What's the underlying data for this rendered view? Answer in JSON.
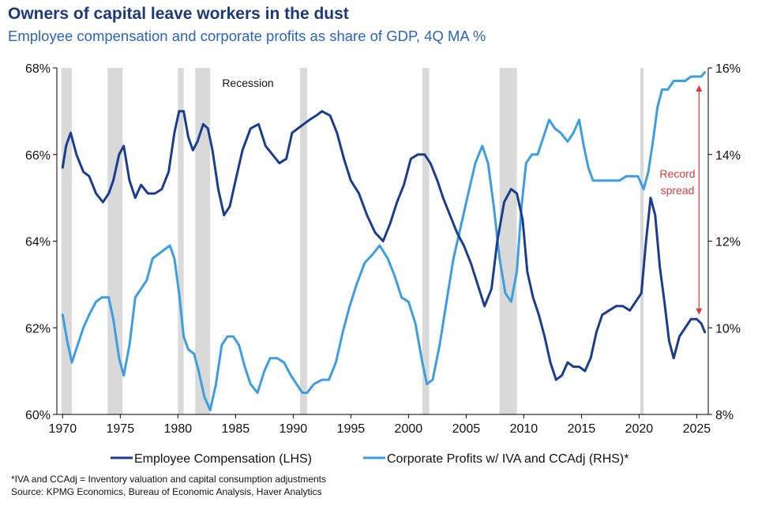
{
  "title": "Owners of capital leave workers in the dust",
  "subtitle": "Employee compensation and corporate profits as share of GDP, 4Q MA %",
  "footnote": "*IVA and CCAdj = Inventory valuation and capital consumption adjustments",
  "source": "Source: KPMG Economics, Bureau of Economic Analysis, Haver Analytics",
  "colors": {
    "employee": "#1a3d8f",
    "profits": "#3c9ee0",
    "recession": "#d9d9d9",
    "annotation": "#d93a3a"
  },
  "chart_data": {
    "type": "line",
    "title": "Owners of capital leave workers in the dust",
    "xlim": [
      1969.5,
      2026.0
    ],
    "ylim_left": [
      60,
      68
    ],
    "ylim_right": [
      8,
      16
    ],
    "x_ticks": [
      1970,
      1975,
      1980,
      1985,
      1990,
      1995,
      2000,
      2005,
      2010,
      2015,
      2020,
      2025
    ],
    "y_left_ticks": [
      "60%",
      "62%",
      "64%",
      "66%",
      "68%"
    ],
    "y_right_ticks": [
      "8%",
      "10%",
      "12%",
      "14%",
      "16%"
    ],
    "recession_label": "Recession",
    "recessions": [
      [
        1969.9,
        1970.8
      ],
      [
        1973.9,
        1975.2
      ],
      [
        1980.0,
        1980.5
      ],
      [
        1981.5,
        1982.8
      ],
      [
        1990.6,
        1991.2
      ],
      [
        2001.2,
        2001.8
      ],
      [
        2007.9,
        2009.4
      ],
      [
        2020.1,
        2020.4
      ]
    ],
    "annotation": {
      "lines": [
        "Record",
        "spread"
      ],
      "x": 2025.2,
      "y_top": 15.6,
      "y_bottom": 10.3
    },
    "series": [
      {
        "name": "Employee Compensation (LHS)",
        "axis": "left",
        "x": [
          1970.0,
          1970.3,
          1970.7,
          1971.2,
          1971.8,
          1972.3,
          1972.9,
          1973.5,
          1974.0,
          1974.4,
          1974.9,
          1975.3,
          1975.8,
          1976.3,
          1976.8,
          1977.4,
          1978.0,
          1978.6,
          1979.2,
          1979.7,
          1980.1,
          1980.5,
          1980.9,
          1981.3,
          1981.7,
          1982.2,
          1982.6,
          1983.0,
          1983.5,
          1984.0,
          1984.5,
          1985.0,
          1985.6,
          1986.3,
          1987.0,
          1987.6,
          1988.2,
          1988.8,
          1989.4,
          1989.9,
          1990.4,
          1990.9,
          1991.4,
          1992.0,
          1992.5,
          1993.2,
          1993.8,
          1994.4,
          1995.0,
          1995.7,
          1996.4,
          1997.1,
          1997.8,
          1998.4,
          1999.0,
          1999.6,
          2000.2,
          2000.8,
          2001.4,
          2001.9,
          2002.5,
          2003.0,
          2003.6,
          2004.2,
          2004.8,
          2005.4,
          2006.0,
          2006.6,
          2007.2,
          2007.7,
          2008.3,
          2008.9,
          2009.4,
          2009.9,
          2010.3,
          2010.8,
          2011.3,
          2011.8,
          2012.3,
          2012.8,
          2013.3,
          2013.8,
          2014.3,
          2014.8,
          2015.3,
          2015.8,
          2016.3,
          2016.8,
          2017.4,
          2018.0,
          2018.6,
          2019.2,
          2019.7,
          2020.2,
          2020.6,
          2021.0,
          2021.4,
          2021.8,
          2022.2,
          2022.6,
          2023.0,
          2023.5,
          2024.0,
          2024.5,
          2025.0,
          2025.4,
          2025.7
        ],
        "values": [
          65.7,
          66.2,
          66.5,
          66.0,
          65.6,
          65.5,
          65.1,
          64.9,
          65.1,
          65.4,
          66.0,
          66.2,
          65.4,
          65.0,
          65.3,
          65.1,
          65.1,
          65.2,
          65.6,
          66.5,
          67.0,
          67.0,
          66.4,
          66.1,
          66.3,
          66.7,
          66.6,
          66.1,
          65.2,
          64.6,
          64.8,
          65.4,
          66.1,
          66.6,
          66.7,
          66.2,
          66.0,
          65.8,
          65.9,
          66.5,
          66.6,
          66.7,
          66.8,
          66.9,
          67.0,
          66.9,
          66.5,
          65.9,
          65.4,
          65.1,
          64.6,
          64.2,
          64.0,
          64.4,
          64.9,
          65.3,
          65.9,
          66.0,
          66.0,
          65.8,
          65.4,
          65.0,
          64.6,
          64.2,
          63.9,
          63.5,
          63.0,
          62.5,
          62.9,
          64.0,
          64.9,
          65.2,
          65.1,
          64.5,
          63.3,
          62.7,
          62.3,
          61.8,
          61.2,
          60.8,
          60.9,
          61.2,
          61.1,
          61.1,
          61.0,
          61.3,
          61.9,
          62.3,
          62.4,
          62.5,
          62.5,
          62.4,
          62.6,
          62.8,
          64.0,
          65.0,
          64.6,
          63.4,
          62.6,
          61.7,
          61.3,
          61.8,
          62.0,
          62.2,
          62.2,
          62.1,
          61.9
        ]
      },
      {
        "name": "Corporate Profits w/ IVA and CCAdj (RHS)*",
        "axis": "right",
        "x": [
          1970.0,
          1970.4,
          1970.8,
          1971.3,
          1971.8,
          1972.3,
          1972.9,
          1973.4,
          1974.0,
          1974.4,
          1974.9,
          1975.3,
          1975.8,
          1976.3,
          1976.8,
          1977.3,
          1977.8,
          1978.3,
          1978.8,
          1979.3,
          1979.7,
          1980.1,
          1980.5,
          1980.9,
          1981.4,
          1981.8,
          1982.3,
          1982.8,
          1983.3,
          1983.8,
          1984.3,
          1984.8,
          1985.3,
          1985.8,
          1986.3,
          1986.9,
          1987.5,
          1988.0,
          1988.6,
          1989.2,
          1989.8,
          1990.3,
          1990.8,
          1991.2,
          1991.8,
          1992.5,
          1993.1,
          1993.7,
          1994.3,
          1994.9,
          1995.5,
          1996.2,
          1996.9,
          1997.5,
          1998.2,
          1998.8,
          1999.4,
          2000.0,
          2000.6,
          2001.2,
          2001.6,
          2002.1,
          2002.7,
          2003.3,
          2003.9,
          2004.5,
          2005.1,
          2005.8,
          2006.4,
          2006.9,
          2007.4,
          2007.9,
          2008.4,
          2008.9,
          2009.4,
          2009.8,
          2010.2,
          2010.7,
          2011.2,
          2011.7,
          2012.2,
          2012.7,
          2013.2,
          2013.8,
          2014.3,
          2014.8,
          2015.2,
          2015.6,
          2016.0,
          2016.5,
          2017.1,
          2017.7,
          2018.3,
          2018.9,
          2019.5,
          2019.9,
          2020.4,
          2020.8,
          2021.2,
          2021.6,
          2022.0,
          2022.5,
          2023.0,
          2023.5,
          2024.0,
          2024.5,
          2025.0,
          2025.4,
          2025.7
        ],
        "values": [
          10.3,
          9.7,
          9.2,
          9.6,
          10.0,
          10.3,
          10.6,
          10.7,
          10.7,
          10.2,
          9.3,
          8.9,
          9.6,
          10.7,
          10.9,
          11.1,
          11.6,
          11.7,
          11.8,
          11.9,
          11.6,
          10.8,
          9.8,
          9.5,
          9.4,
          9.0,
          8.4,
          8.1,
          8.7,
          9.6,
          9.8,
          9.8,
          9.6,
          9.1,
          8.7,
          8.5,
          9.0,
          9.3,
          9.3,
          9.2,
          8.9,
          8.7,
          8.5,
          8.5,
          8.7,
          8.8,
          8.8,
          9.2,
          9.9,
          10.5,
          11.0,
          11.5,
          11.7,
          11.9,
          11.6,
          11.2,
          10.7,
          10.6,
          10.1,
          9.2,
          8.7,
          8.8,
          9.6,
          10.6,
          11.6,
          12.3,
          13.0,
          13.8,
          14.2,
          13.8,
          12.8,
          11.6,
          10.8,
          10.6,
          11.3,
          12.8,
          13.8,
          14.0,
          14.0,
          14.4,
          14.8,
          14.6,
          14.5,
          14.3,
          14.5,
          14.8,
          14.2,
          13.7,
          13.4,
          13.4,
          13.4,
          13.4,
          13.4,
          13.5,
          13.5,
          13.5,
          13.2,
          13.6,
          14.3,
          15.1,
          15.5,
          15.5,
          15.7,
          15.7,
          15.7,
          15.8,
          15.8,
          15.8,
          15.9
        ]
      }
    ],
    "legend_placement": "bottom-center"
  }
}
